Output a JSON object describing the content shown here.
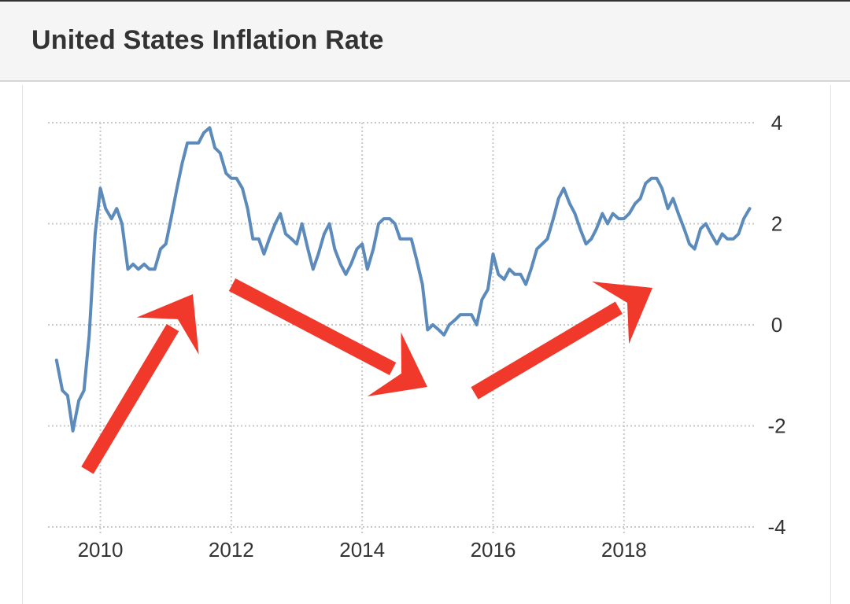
{
  "header": {
    "title": "United States Inflation Rate"
  },
  "colors": {
    "line": "#5b8abb",
    "grid": "#c8c8c8",
    "arrow": "#f0392b",
    "text": "#333333"
  },
  "chart_data": {
    "type": "line",
    "title": "United States Inflation Rate",
    "xlabel": "",
    "ylabel": "",
    "xlim": [
      2009.2,
      2019.95
    ],
    "ylim": [
      -4,
      4
    ],
    "grid": true,
    "y_axis_position": "right",
    "y_ticks": [
      4,
      2,
      0,
      -2,
      -4
    ],
    "y_tick_labels": [
      "4",
      "2",
      "0",
      "-2",
      "-4"
    ],
    "x_ticks": [
      2010,
      2012,
      2014,
      2016,
      2018
    ],
    "x_tick_labels": [
      "2010",
      "2012",
      "2014",
      "2016",
      "2018"
    ],
    "series": [
      {
        "x": [
          2009.33,
          2009.42,
          2009.5,
          2009.58,
          2009.67,
          2009.75,
          2009.83,
          2009.92,
          2010.0,
          2010.08,
          2010.17,
          2010.25,
          2010.33,
          2010.42,
          2010.5,
          2010.58,
          2010.67,
          2010.75,
          2010.83,
          2010.92,
          2011.0,
          2011.08,
          2011.17,
          2011.25,
          2011.33,
          2011.42,
          2011.5,
          2011.58,
          2011.67,
          2011.75,
          2011.83,
          2011.92,
          2012.0,
          2012.08,
          2012.17,
          2012.25,
          2012.33,
          2012.42,
          2012.5,
          2012.58,
          2012.67,
          2012.75,
          2012.83,
          2012.92,
          2013.0,
          2013.08,
          2013.17,
          2013.25,
          2013.33,
          2013.42,
          2013.5,
          2013.58,
          2013.67,
          2013.75,
          2013.83,
          2013.92,
          2014.0,
          2014.08,
          2014.17,
          2014.25,
          2014.33,
          2014.42,
          2014.5,
          2014.58,
          2014.67,
          2014.75,
          2014.83,
          2014.92,
          2015.0,
          2015.08,
          2015.17,
          2015.25,
          2015.33,
          2015.42,
          2015.5,
          2015.58,
          2015.67,
          2015.75,
          2015.83,
          2015.92,
          2016.0,
          2016.08,
          2016.17,
          2016.25,
          2016.33,
          2016.42,
          2016.5,
          2016.58,
          2016.67,
          2016.75,
          2016.83,
          2016.92,
          2017.0,
          2017.08,
          2017.17,
          2017.25,
          2017.33,
          2017.42,
          2017.5,
          2017.58,
          2017.67,
          2017.75,
          2017.83,
          2017.92,
          2018.0,
          2018.08,
          2018.17,
          2018.25,
          2018.33,
          2018.42,
          2018.5,
          2018.58,
          2018.67,
          2018.75,
          2018.83,
          2018.92,
          2019.0,
          2019.08,
          2019.17,
          2019.25,
          2019.33,
          2019.42,
          2019.5,
          2019.58,
          2019.67,
          2019.75,
          2019.83,
          2019.92
        ],
        "values": [
          -0.7,
          -1.3,
          -1.4,
          -2.1,
          -1.5,
          -1.3,
          -0.2,
          1.8,
          2.7,
          2.3,
          2.1,
          2.3,
          2.0,
          1.1,
          1.2,
          1.1,
          1.2,
          1.1,
          1.1,
          1.5,
          1.6,
          2.1,
          2.7,
          3.2,
          3.6,
          3.6,
          3.6,
          3.8,
          3.9,
          3.5,
          3.4,
          3.0,
          2.9,
          2.9,
          2.7,
          2.3,
          1.7,
          1.7,
          1.4,
          1.7,
          2.0,
          2.2,
          1.8,
          1.7,
          1.6,
          2.0,
          1.5,
          1.1,
          1.4,
          1.8,
          2.0,
          1.5,
          1.2,
          1.0,
          1.2,
          1.5,
          1.6,
          1.1,
          1.5,
          2.0,
          2.1,
          2.1,
          2.0,
          1.7,
          1.7,
          1.7,
          1.3,
          0.8,
          -0.1,
          0.0,
          -0.1,
          -0.2,
          0.0,
          0.1,
          0.2,
          0.2,
          0.2,
          0.0,
          0.5,
          0.7,
          1.4,
          1.0,
          0.9,
          1.1,
          1.0,
          1.0,
          0.8,
          1.1,
          1.5,
          1.6,
          1.7,
          2.1,
          2.5,
          2.7,
          2.4,
          2.2,
          1.9,
          1.6,
          1.7,
          1.9,
          2.2,
          2.0,
          2.2,
          2.1,
          2.1,
          2.2,
          2.4,
          2.5,
          2.8,
          2.9,
          2.9,
          2.7,
          2.3,
          2.5,
          2.2,
          1.9,
          1.6,
          1.5,
          1.9,
          2.0,
          1.8,
          1.6,
          1.8,
          1.7,
          1.7,
          1.8,
          2.1,
          2.3
        ]
      }
    ]
  }
}
